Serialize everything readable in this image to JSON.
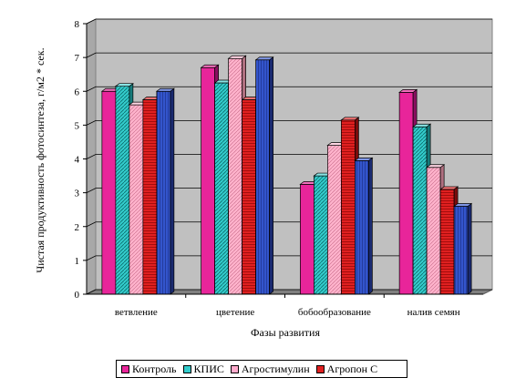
{
  "chart_data": {
    "type": "bar",
    "title": "",
    "xlabel": "Фазы развития",
    "ylabel": "Чистая продуктивность фотосинтеза, г/м2 * сек.",
    "ylim": [
      0,
      8
    ],
    "yticks": [
      "0",
      "1",
      "2",
      "3",
      "4",
      "5",
      "6",
      "7",
      "8"
    ],
    "categories": [
      "ветвление",
      "цветение",
      "бобообразование",
      "налив семян"
    ],
    "grid": true,
    "legend_position": "bottom",
    "series": [
      {
        "name": "Контроль",
        "color": "#e8259a",
        "values": [
          6.0,
          6.7,
          3.25,
          5.97
        ]
      },
      {
        "name": "КПИС",
        "color": "#33cccc",
        "values": [
          6.15,
          6.25,
          3.5,
          4.95
        ]
      },
      {
        "name": "Агростимулин",
        "color": "#ffaacc",
        "values": [
          5.6,
          6.97,
          4.4,
          3.75
        ]
      },
      {
        "name": "Агропон С",
        "color": "#e02020",
        "values": [
          5.75,
          5.75,
          5.15,
          3.1
        ]
      },
      {
        "name": "",
        "color": "#3355cc",
        "values": [
          6.0,
          6.93,
          3.95,
          2.6
        ]
      }
    ]
  }
}
